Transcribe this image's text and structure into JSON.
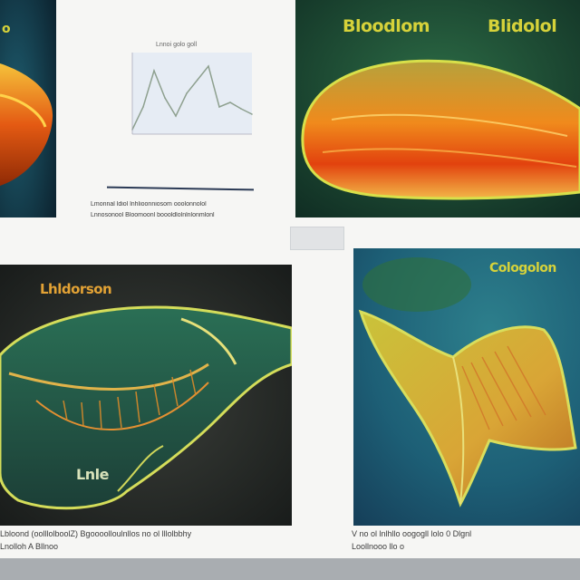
{
  "panels": {
    "top_left": {
      "label": "o"
    },
    "top_right": {
      "label_left": "Bloodlom",
      "label_right": "Blidolol"
    },
    "bottom_left": {
      "label_top": "Lhldorson",
      "label_bottom": "Lnle"
    },
    "bottom_right": {
      "label": "Cologolon"
    }
  },
  "mini_chart": {
    "title": "Lnnoi golo goll",
    "caption_line1": "Lmonnal ldiol lnhlioonniosom ooolonnolol",
    "caption_line2": "Lnnosonool Bloomoonl boooldlolnlnlonmlonl"
  },
  "captions": {
    "bottom_left_line1": "Lbloond (oolllolboolZ) Bgoooolloulnllos no ol lllolbbhy",
    "bottom_left_line2": "Lnolloh A Bllnoo",
    "bottom_right_line1": "V no ol lnlhllo oogogll lolo 0 Dlgnl",
    "bottom_right_line2": "Loollnooo llo o"
  },
  "chart_data": {
    "type": "line",
    "title": "Lnnoi golo goll",
    "x": [
      0,
      1,
      2,
      3,
      4,
      5,
      6,
      7,
      8,
      9,
      10,
      11
    ],
    "series": [
      {
        "values": [
          5,
          30,
          70,
          40,
          20,
          45,
          60,
          75,
          30,
          35,
          28,
          22
        ]
      }
    ],
    "ylim": [
      0,
      90
    ],
    "grid": false
  }
}
